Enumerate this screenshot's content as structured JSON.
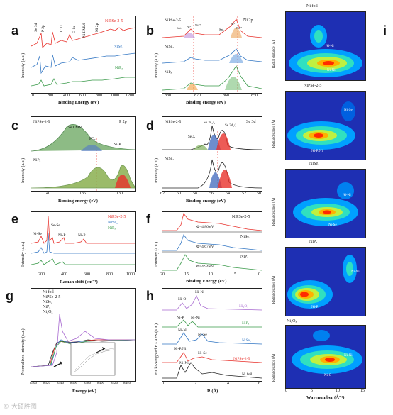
{
  "figure": {
    "watermark": "© 大硕胜图"
  },
  "panels": {
    "a": {
      "label": "a",
      "xlabel": "Binding Energy (eV)",
      "ylabel": "Intensity (a.u.)",
      "xticks": [
        "0",
        "200",
        "400",
        "600",
        "800",
        "1000",
        "1200"
      ],
      "legend": [
        "NiPSe-2-5",
        "NiSe₂",
        "NiPₓ"
      ],
      "annotations": [
        "Se 3d",
        "P 2p",
        "Se 3s",
        "Se 3p",
        "C 1s",
        "O 1s",
        "Ni LMM",
        "Ni 2p"
      ]
    },
    "b": {
      "label": "b",
      "xlabel": "Binding energy (eV)",
      "ylabel": "Intensity (a.u.)",
      "title": "Ni 2p",
      "xticks": [
        "880",
        "870",
        "860",
        "850"
      ],
      "series_labels": [
        "NiPSe-2-5",
        "NiSe₂",
        "NiPₓ"
      ],
      "annotations": [
        "Sat.",
        "Sat.",
        "Ni³⁺",
        "Ni²⁺",
        "Ni³⁺",
        "Ni²⁺"
      ]
    },
    "c": {
      "label": "c",
      "xlabel": "Binding energy (eV)",
      "ylabel": "Intensity (a.u.)",
      "title": "P 2p",
      "xticks": [
        "140",
        "135",
        "130"
      ],
      "series_labels": [
        "NiPSe-2-5",
        "NiPₓ"
      ],
      "annotations": [
        "Se LMM",
        "POₓ",
        "Ni-P"
      ]
    },
    "d": {
      "label": "d",
      "xlabel": "Binding energy (eV)",
      "ylabel": "Intensity (a.u.)",
      "title": "Se 3d",
      "xticks": [
        "62",
        "60",
        "58",
        "56",
        "54",
        "52",
        "50"
      ],
      "series_labels": [
        "NiPSe-2-5",
        "NiSe₂"
      ],
      "annotations": [
        "Se 3d₃/₂",
        "Se 3d₅/₂",
        "SeOₓ"
      ]
    },
    "e": {
      "label": "e",
      "xlabel": "Raman shift (cm⁻¹)",
      "ylabel": "Intensity (a.u.)",
      "xticks": [
        "200",
        "400",
        "600",
        "800",
        "1000"
      ],
      "legend": [
        "NiPSe-2-5",
        "NiSe₂",
        "NiPₓ"
      ],
      "annotations": [
        "Se-Se",
        "Ni-Se",
        "Ni-P",
        "Ni-P"
      ]
    },
    "f": {
      "label": "f",
      "xlabel": "Binding Energy (eV)",
      "ylabel": "Intensity (a.u.)",
      "xticks": [
        "20",
        "15",
        "10",
        "5",
        "0"
      ],
      "legend": [
        "NiPSe-2-5",
        "NiSe₂",
        "NiPₓ"
      ],
      "work_functions": [
        "Φ=4.86 eV",
        "Φ=4.67 eV",
        "Φ=4.94 eV"
      ]
    },
    "g": {
      "label": "g",
      "xlabel": "Energy (eV)",
      "ylabel": "Normalized intensity (a.u.)",
      "xticks": [
        "8300",
        "8320",
        "8340",
        "8360",
        "8380",
        "8400",
        "8420",
        "8440"
      ],
      "legend": [
        "Ni foil",
        "NiPSe-2-5",
        "NiSe₂",
        "NiPₓ",
        "Ni₂O₃"
      ]
    },
    "h": {
      "label": "h",
      "xlabel": "R (Å)",
      "ylabel": "FT k³-weighted EXAFS (a.u.)",
      "xticks": [
        "0",
        "2",
        "4",
        "6"
      ],
      "series_labels": [
        "Ni₂O₃",
        "NiPₓ",
        "NiSe₂",
        "NiPSe-2-5",
        "Ni foil"
      ],
      "annotations": [
        "Ni-O",
        "Ni-Ni",
        "Ni-P",
        "Ni-Ni",
        "Ni-Ni",
        "Ni-Se",
        "Ni-P/Ni",
        "Ni-Se",
        "Ni-Ni"
      ]
    },
    "i": {
      "label": "i",
      "xlabel": "Wavenumber (Å⁻¹)",
      "xticks": [
        "0",
        "5",
        "10",
        "15"
      ],
      "yticks": [
        "0",
        "1",
        "2",
        "3",
        "4",
        "5"
      ],
      "maps": [
        {
          "title": "Ni foil",
          "ylabel": "Radial distance (Å)",
          "annotations": [
            "Ni-Ni",
            "Ni-Ni"
          ]
        },
        {
          "title": "NiPSe-2-5",
          "ylabel": "Radial distance (Å)",
          "annotations": [
            "Ni-Se",
            "Ni-P/Ni"
          ]
        },
        {
          "title": "NiSe₂",
          "ylabel": "Radial distance (Å)",
          "annotations": [
            "Ni-Ni",
            "Ni-Se"
          ]
        },
        {
          "title": "NiPₓ",
          "ylabel": "Radial distance (Å)",
          "annotations": [
            "Ni-Ni",
            "Ni-P"
          ]
        },
        {
          "title": "Ni₂O₃",
          "ylabel": "Radial distance (Å)",
          "annotations": [
            "Ni-Ni",
            "Ni-O"
          ]
        }
      ]
    }
  },
  "colors": {
    "red": "#e8322c",
    "blue": "#3276c3",
    "green": "#3a9a4a",
    "olive": "#5a8a3a",
    "purple": "#a86ad0",
    "black": "#222222",
    "heat_low": "#1e2fb3",
    "heat_high": "#ff2a00"
  },
  "chart_data": [
    {
      "panel": "a",
      "type": "line",
      "title": "",
      "xlabel": "Binding Energy (eV)",
      "ylabel": "Intensity (a.u.)",
      "xlim": [
        1300,
        0
      ],
      "series": [
        {
          "name": "NiPSe-2-5"
        },
        {
          "name": "NiSe₂"
        },
        {
          "name": "NiPₓ"
        }
      ]
    },
    {
      "panel": "b",
      "type": "line",
      "title": "Ni 2p",
      "xlabel": "Binding energy (eV)",
      "xlim": [
        885,
        845
      ],
      "series": [
        {
          "name": "NiPSe-2-5"
        },
        {
          "name": "NiSe₂"
        },
        {
          "name": "NiPₓ"
        }
      ]
    },
    {
      "panel": "c",
      "type": "line",
      "title": "P 2p",
      "xlabel": "Binding energy (eV)",
      "xlim": [
        142,
        127
      ],
      "series": [
        {
          "name": "NiPSe-2-5"
        },
        {
          "name": "NiPₓ"
        }
      ]
    },
    {
      "panel": "d",
      "type": "line",
      "title": "Se 3d",
      "xlabel": "Binding energy (eV)",
      "xlim": [
        62,
        50
      ],
      "series": [
        {
          "name": "NiPSe-2-5"
        },
        {
          "name": "NiSe₂"
        }
      ]
    },
    {
      "panel": "e",
      "type": "line",
      "xlabel": "Raman shift (cm⁻¹)",
      "xlim": [
        100,
        1000
      ],
      "series": [
        {
          "name": "NiPSe-2-5"
        },
        {
          "name": "NiSe₂"
        },
        {
          "name": "NiPₓ"
        }
      ]
    },
    {
      "panel": "f",
      "type": "line",
      "xlabel": "Binding Energy (eV)",
      "xlim": [
        20,
        0
      ],
      "series": [
        {
          "name": "NiPSe-2-5",
          "work_function_eV": 4.86
        },
        {
          "name": "NiSe₂",
          "work_function_eV": 4.67
        },
        {
          "name": "NiPₓ",
          "work_function_eV": 4.94
        }
      ]
    },
    {
      "panel": "g",
      "type": "line",
      "xlabel": "Energy (eV)",
      "ylabel": "Normalized intensity (a.u.)",
      "xlim": [
        8300,
        8450
      ],
      "series": [
        {
          "name": "Ni foil"
        },
        {
          "name": "NiPSe-2-5"
        },
        {
          "name": "NiSe₂"
        },
        {
          "name": "NiPₓ"
        },
        {
          "name": "Ni₂O₃"
        }
      ]
    },
    {
      "panel": "h",
      "type": "line",
      "xlabel": "R (Å)",
      "ylabel": "FT k³-weighted EXAFS (a.u.)",
      "xlim": [
        0,
        6
      ],
      "series": [
        {
          "name": "Ni₂O₃"
        },
        {
          "name": "NiPₓ"
        },
        {
          "name": "NiSe₂"
        },
        {
          "name": "NiPSe-2-5"
        },
        {
          "name": "Ni foil"
        }
      ]
    },
    {
      "panel": "i",
      "type": "heatmap",
      "xlabel": "Wavenumber (Å⁻¹)",
      "ylabel": "Radial distance (Å)",
      "xlim": [
        0,
        15
      ],
      "ylim": [
        0,
        5
      ]
    }
  ]
}
